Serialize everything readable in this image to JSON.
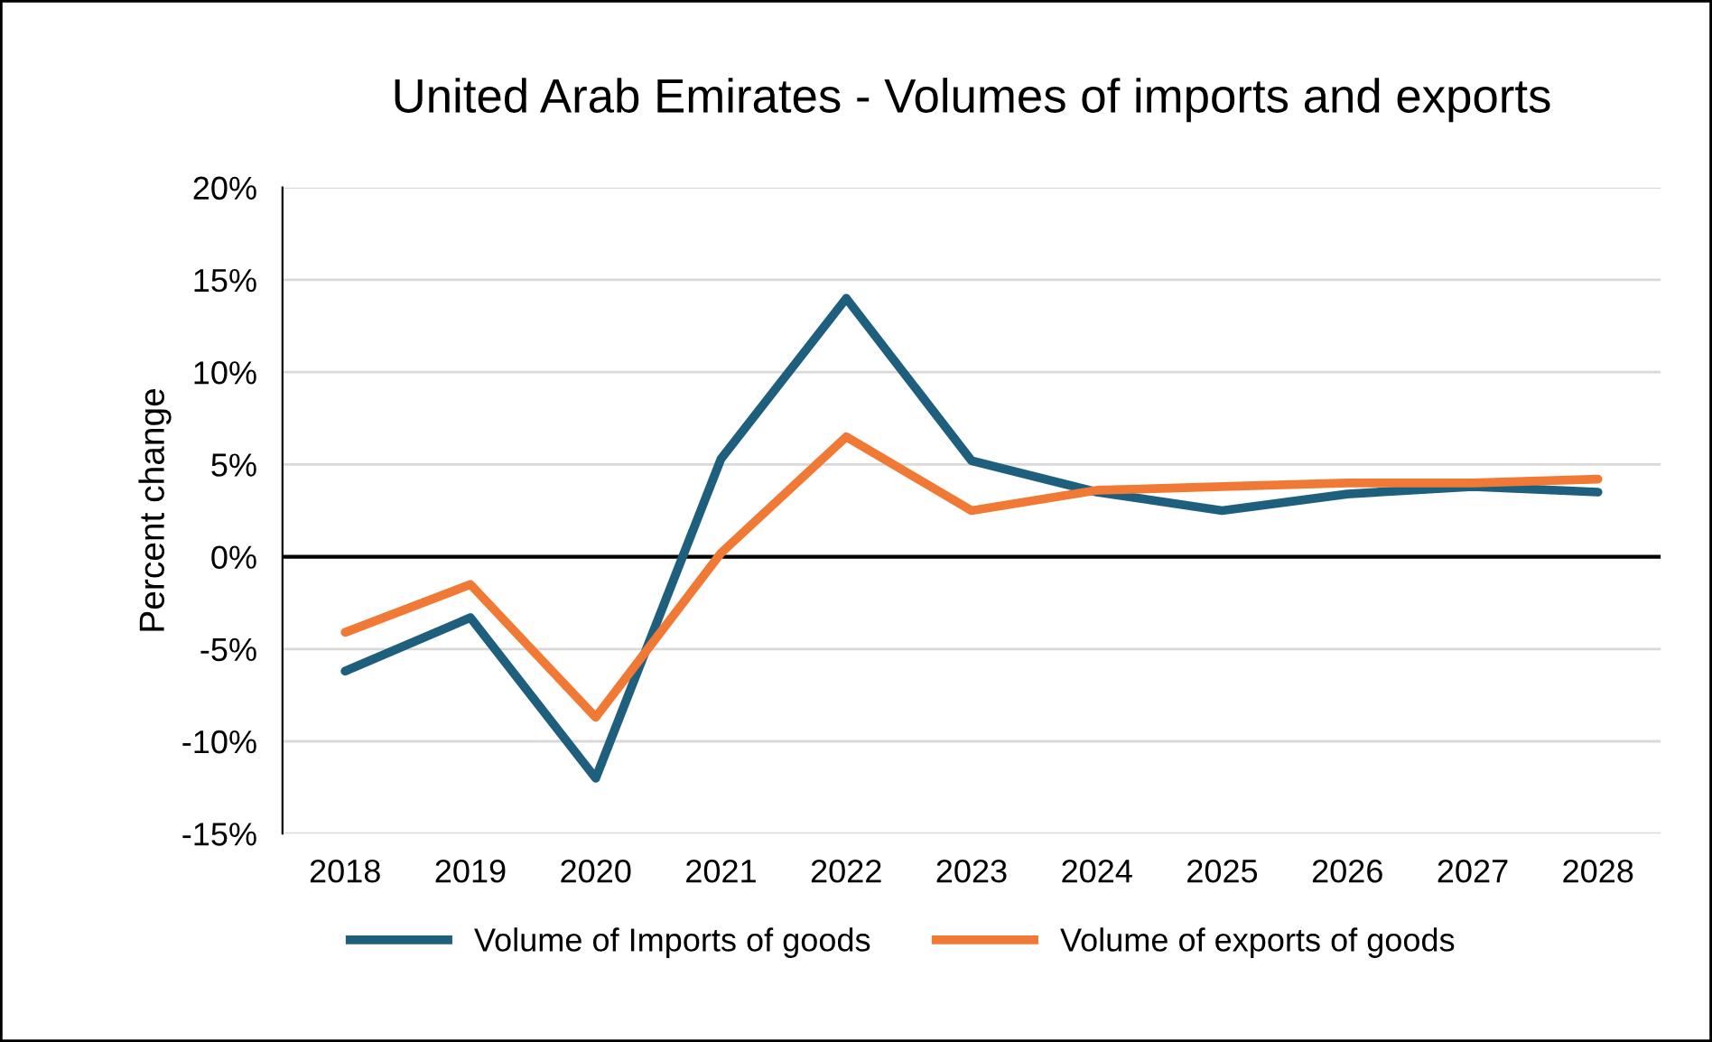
{
  "chart_data": {
    "type": "line",
    "title": "United Arab Emirates - Volumes of imports and exports",
    "ylabel": "Percent change",
    "categories": [
      "2018",
      "2019",
      "2020",
      "2021",
      "2022",
      "2023",
      "2024",
      "2025",
      "2026",
      "2027",
      "2028"
    ],
    "series": [
      {
        "name": "Volume of Imports of goods",
        "color": "#1f5f7e",
        "values": [
          -6.2,
          -3.3,
          -12.0,
          5.3,
          14.0,
          5.2,
          3.5,
          2.5,
          3.4,
          3.8,
          3.5
        ]
      },
      {
        "name": "Volume of exports of goods",
        "color": "#f07a35",
        "values": [
          -4.1,
          -1.5,
          -8.7,
          0.2,
          6.5,
          2.5,
          3.6,
          3.8,
          4.0,
          4.0,
          4.2
        ]
      }
    ],
    "ylim": [
      -15,
      20
    ],
    "yticks": [
      {
        "value": -15,
        "label": "-15%"
      },
      {
        "value": -10,
        "label": "-10%"
      },
      {
        "value": -5,
        "label": "-5%"
      },
      {
        "value": 0,
        "label": "0%"
      },
      {
        "value": 5,
        "label": "5%"
      },
      {
        "value": 10,
        "label": "10%"
      },
      {
        "value": 15,
        "label": "15%"
      },
      {
        "value": 20,
        "label": "20%"
      }
    ],
    "ref_lines": [
      {
        "axis": "y",
        "value": 0,
        "color": "#000000"
      }
    ],
    "grid": "y",
    "legend": "bottom",
    "marker": "none",
    "line_style": "solid"
  }
}
